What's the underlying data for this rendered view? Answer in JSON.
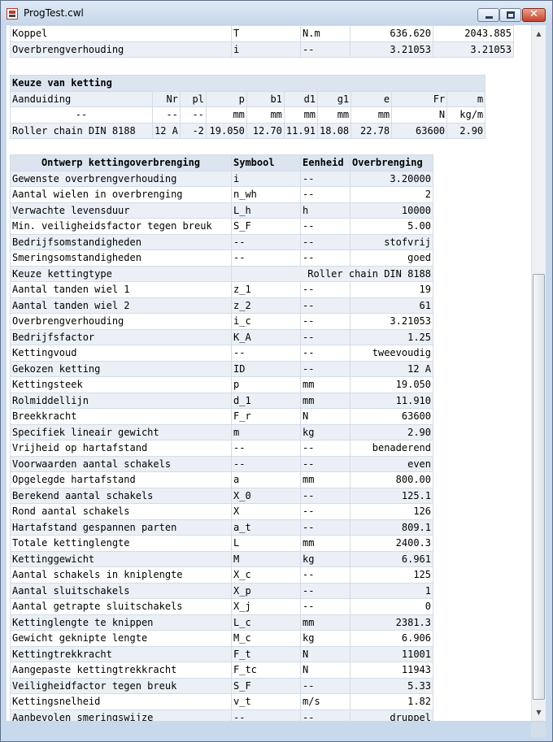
{
  "window": {
    "title": "ProgTest.cwl",
    "icon": "app-document-icon"
  },
  "top_rows": [
    {
      "name": "Koppel",
      "symbol": "T",
      "unit": "N.m",
      "v1": "636.620",
      "v2": "2043.885"
    },
    {
      "name": "Overbrengverhouding",
      "symbol": "i",
      "unit": "--",
      "v1": "3.21053",
      "v2": "3.21053"
    }
  ],
  "keuze": {
    "title": "Keuze van ketting",
    "headers": [
      "Aanduiding",
      "Nr",
      "pl",
      "p",
      "b1",
      "d1",
      "g1",
      "e",
      "Fr",
      "m"
    ],
    "units": [
      "--",
      "--",
      "--",
      "mm",
      "mm",
      "mm",
      "mm",
      "mm",
      "N",
      "kg/m"
    ],
    "row": [
      "Roller chain DIN 8188",
      "12 A",
      "-2",
      "19.050",
      "12.70",
      "11.91",
      "18.08",
      "22.78",
      "63600",
      "2.90"
    ]
  },
  "ontwerp": {
    "headers": [
      "Ontwerp kettingoverbrenging",
      "Symbool",
      "Eenheid",
      "Overbrenging"
    ],
    "kettingtype_label": "Keuze kettingtype",
    "kettingtype_value": "Roller chain DIN 8188",
    "rows": [
      {
        "name": "Gewenste overbrengverhouding",
        "symbol": "i",
        "unit": "--",
        "value": "3.20000"
      },
      {
        "name": "Aantal wielen in overbrenging",
        "symbol": "n_wh",
        "unit": "--",
        "value": "2"
      },
      {
        "name": "Verwachte levensduur",
        "symbol": "L_h",
        "unit": "h",
        "value": "10000"
      },
      {
        "name": "Min. veiligheidsfactor tegen breuk",
        "symbol": "S_F",
        "unit": "--",
        "value": "5.00"
      },
      {
        "name": "Bedrijfsomstandigheden",
        "symbol": "--",
        "unit": "--",
        "value": "stofvrij"
      },
      {
        "name": "Smeringsomstandigheden",
        "symbol": "--",
        "unit": "--",
        "value": "goed"
      }
    ],
    "rows2": [
      {
        "name": "Aantal tanden wiel 1",
        "symbol": "z_1",
        "unit": "--",
        "value": "19"
      },
      {
        "name": "Aantal tanden wiel 2",
        "symbol": "z_2",
        "unit": "--",
        "value": "61"
      },
      {
        "name": "Overbrengverhouding",
        "symbol": "i_c",
        "unit": "--",
        "value": "3.21053"
      },
      {
        "name": "Bedrijfsfactor",
        "symbol": "K_A",
        "unit": "--",
        "value": "1.25"
      },
      {
        "name": "Kettingvoud",
        "symbol": "--",
        "unit": "--",
        "value": "tweevoudig"
      },
      {
        "name": "Gekozen ketting",
        "symbol": "ID",
        "unit": "--",
        "value": "12 A"
      },
      {
        "name": "Kettingsteek",
        "symbol": "p",
        "unit": "mm",
        "value": "19.050"
      },
      {
        "name": "Rolmiddellijn",
        "symbol": "d_1",
        "unit": "mm",
        "value": "11.910"
      },
      {
        "name": "Breekkracht",
        "symbol": "F_r",
        "unit": "N",
        "value": "63600"
      },
      {
        "name": "Specifiek lineair gewicht",
        "symbol": "m",
        "unit": "kg",
        "value": "2.90"
      },
      {
        "name": "Vrijheid op hartafstand",
        "symbol": "--",
        "unit": "--",
        "value": "benaderend"
      },
      {
        "name": "Voorwaarden aantal schakels",
        "symbol": "--",
        "unit": "--",
        "value": "even"
      },
      {
        "name": "Opgelegde hartafstand",
        "symbol": "a",
        "unit": "mm",
        "value": "800.00"
      },
      {
        "name": "Berekend aantal schakels",
        "symbol": "X_0",
        "unit": "--",
        "value": "125.1"
      },
      {
        "name": "Rond aantal schakels",
        "symbol": "X",
        "unit": "--",
        "value": "126"
      },
      {
        "name": "Hartafstand gespannen parten",
        "symbol": "a_t",
        "unit": "--",
        "value": "809.1"
      },
      {
        "name": "Totale kettinglengte",
        "symbol": "L",
        "unit": "mm",
        "value": "2400.3"
      },
      {
        "name": "Kettinggewicht",
        "symbol": "M",
        "unit": "kg",
        "value": "6.961"
      },
      {
        "name": "Aantal schakels in kniplengte",
        "symbol": "X_c",
        "unit": "--",
        "value": "125"
      },
      {
        "name": "Aantal sluitschakels",
        "symbol": "X_p",
        "unit": "--",
        "value": "1"
      },
      {
        "name": "Aantal getrapte sluitschakels",
        "symbol": "X_j",
        "unit": "--",
        "value": "0"
      },
      {
        "name": "Kettinglengte te knippen",
        "symbol": "L_c",
        "unit": "mm",
        "value": "2381.3"
      },
      {
        "name": "Gewicht geknipte lengte",
        "symbol": "M_c",
        "unit": "kg",
        "value": "6.906"
      },
      {
        "name": "Kettingtrekkracht",
        "symbol": "F_t",
        "unit": "N",
        "value": "11001"
      },
      {
        "name": "Aangepaste kettingtrekkracht",
        "symbol": "F_tc",
        "unit": "N",
        "value": "11943"
      },
      {
        "name": "Veiligheidfactor tegen breuk",
        "symbol": "S_F",
        "unit": "--",
        "value": "5.33"
      },
      {
        "name": "Kettingsnelheid",
        "symbol": "v_t",
        "unit": "m/s",
        "value": "1.82"
      },
      {
        "name": "Aanbevolen smeringswijze",
        "symbol": "--",
        "unit": "--",
        "value": "druppel"
      }
    ]
  }
}
